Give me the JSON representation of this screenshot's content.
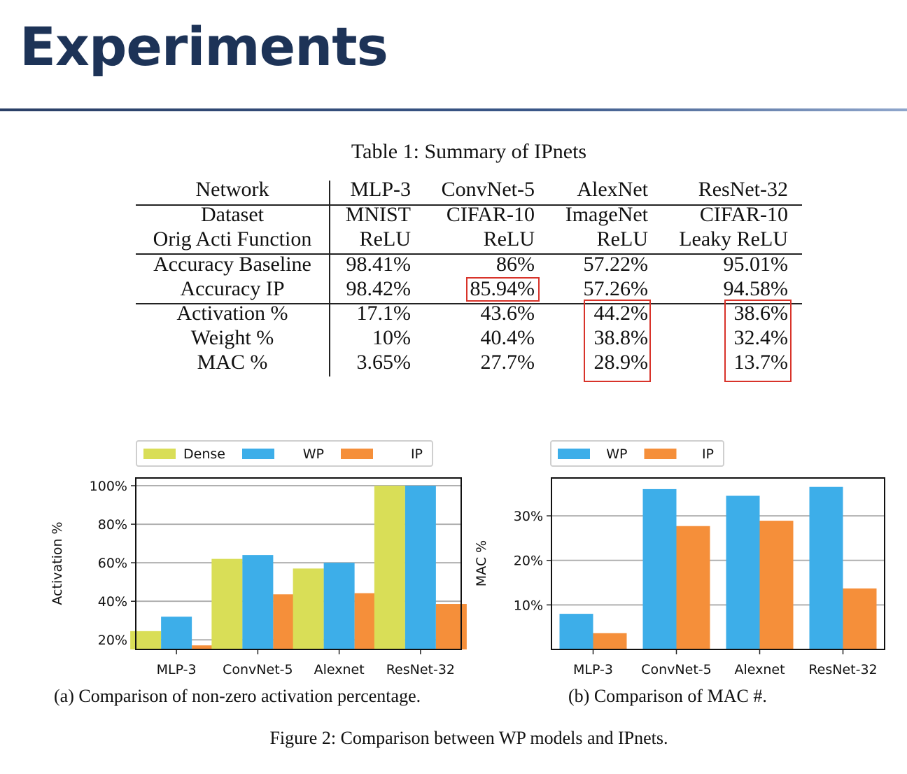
{
  "slide": {
    "title": "Experiments"
  },
  "table": {
    "caption": "Table 1: Summary of IPnets",
    "header": [
      "Network",
      "MLP-3",
      "ConvNet-5",
      "AlexNet",
      "ResNet-32"
    ],
    "rows": [
      [
        "Dataset",
        "MNIST",
        "CIFAR-10",
        "ImageNet",
        "CIFAR-10"
      ],
      [
        "Orig Acti Function",
        "ReLU",
        "ReLU",
        "ReLU",
        "Leaky ReLU"
      ],
      [
        "Accuracy Baseline",
        "98.41%",
        "86%",
        "57.22%",
        "95.01%"
      ],
      [
        "Accuracy IP",
        "98.42%",
        "85.94%",
        "57.26%",
        "94.58%"
      ],
      [
        "Activation %",
        "17.1%",
        "43.6%",
        "44.2%",
        "38.6%"
      ],
      [
        "Weight %",
        "10%",
        "40.4%",
        "38.8%",
        "32.4%"
      ],
      [
        "MAC %",
        "3.65%",
        "27.7%",
        "28.9%",
        "13.7%"
      ]
    ],
    "highlight_color": "#d8332a"
  },
  "chart_data": [
    {
      "type": "bar",
      "title": "",
      "caption": "(a) Comparison of non-zero activation percentage.",
      "categories": [
        "MLP-3",
        "ConvNet-5",
        "Alexnet",
        "ResNet-32"
      ],
      "series": [
        {
          "name": "Dense",
          "color": "#d9de57",
          "values": [
            24.5,
            62,
            57,
            100
          ]
        },
        {
          "name": "WP",
          "color": "#3daee9",
          "values": [
            32,
            64,
            60,
            100
          ]
        },
        {
          "name": "IP",
          "color": "#f58f3a",
          "values": [
            17.1,
            43.6,
            44.2,
            38.6
          ]
        }
      ],
      "xlabel": "",
      "ylabel": "Activation %",
      "ylim": [
        15,
        104
      ],
      "yticks": [
        20,
        40,
        60,
        80,
        100
      ],
      "ytick_labels": [
        "20%",
        "40%",
        "60%",
        "80%",
        "100%"
      ],
      "grid": true,
      "legend": "top"
    },
    {
      "type": "bar",
      "title": "",
      "caption": "(b) Comparison of MAC #.",
      "categories": [
        "MLP-3",
        "ConvNet-5",
        "Alexnet",
        "ResNet-32"
      ],
      "series": [
        {
          "name": "WP",
          "color": "#3daee9",
          "values": [
            8,
            36,
            34.5,
            36.5
          ]
        },
        {
          "name": "IP",
          "color": "#f58f3a",
          "values": [
            3.65,
            27.7,
            28.9,
            13.7
          ]
        }
      ],
      "xlabel": "",
      "ylabel": "MAC %",
      "ylim": [
        0,
        38.5
      ],
      "yticks": [
        10,
        20,
        30
      ],
      "ytick_labels": [
        "10%",
        "20%",
        "30%"
      ],
      "grid": true,
      "legend": "top"
    }
  ],
  "figure_caption": "Figure 2: Comparison between WP models and IPnets."
}
